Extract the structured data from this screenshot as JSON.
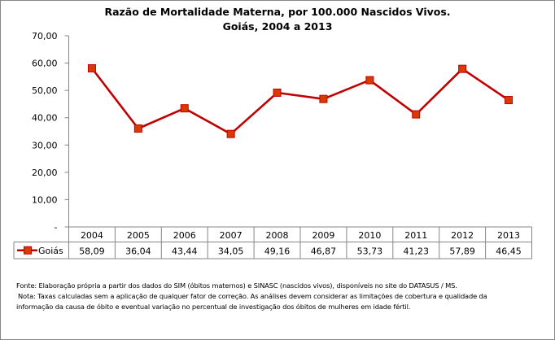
{
  "chart_data": {
    "type": "line",
    "title": "Razão de Mortalidade Materna, por 100.000 Nascidos Vivos.",
    "subtitle": "Goiás, 2004 a 2013",
    "categories": [
      "2004",
      "2005",
      "2006",
      "2007",
      "2008",
      "2009",
      "2010",
      "2011",
      "2012",
      "2013"
    ],
    "series": [
      {
        "name": "Goiás",
        "values": [
          58.09,
          36.04,
          43.44,
          34.05,
          49.16,
          46.87,
          53.73,
          41.23,
          57.89,
          46.45
        ],
        "value_labels": [
          "58,09",
          "36,04",
          "43,44",
          "34,05",
          "49,16",
          "46,87",
          "53,73",
          "41,23",
          "57,89",
          "46,45"
        ],
        "color": "#C00000",
        "marker_fill": "#D83A00"
      }
    ],
    "ylim": [
      0,
      70
    ],
    "yticks": [
      0,
      10,
      20,
      30,
      40,
      50,
      60,
      70
    ],
    "ytick_labels": [
      "-",
      "10,00",
      "20,00",
      "30,00",
      "40,00",
      "50,00",
      "60,00",
      "70,00"
    ],
    "xlabel": "",
    "ylabel": "",
    "grid": false,
    "legend": "data-table-left"
  },
  "notes": {
    "source": "Fonte: Elaboração própria a partir dos dados do SIM (óbitos maternos) e SINASC (nascidos vivos), disponíveis no site do DATASUS / MS.",
    "note_line1": "Nota:  Taxas calculadas sem a aplicação de qualquer fator de correção. As análises devem considerar as limitações de cobertura e qualidade da",
    "note_line2": "informação da causa de óbito e eventual variação no percentual de investigação dos óbitos de mulheres em idade fértil."
  },
  "colors": {
    "axis": "#868686",
    "frame": "#868686"
  }
}
